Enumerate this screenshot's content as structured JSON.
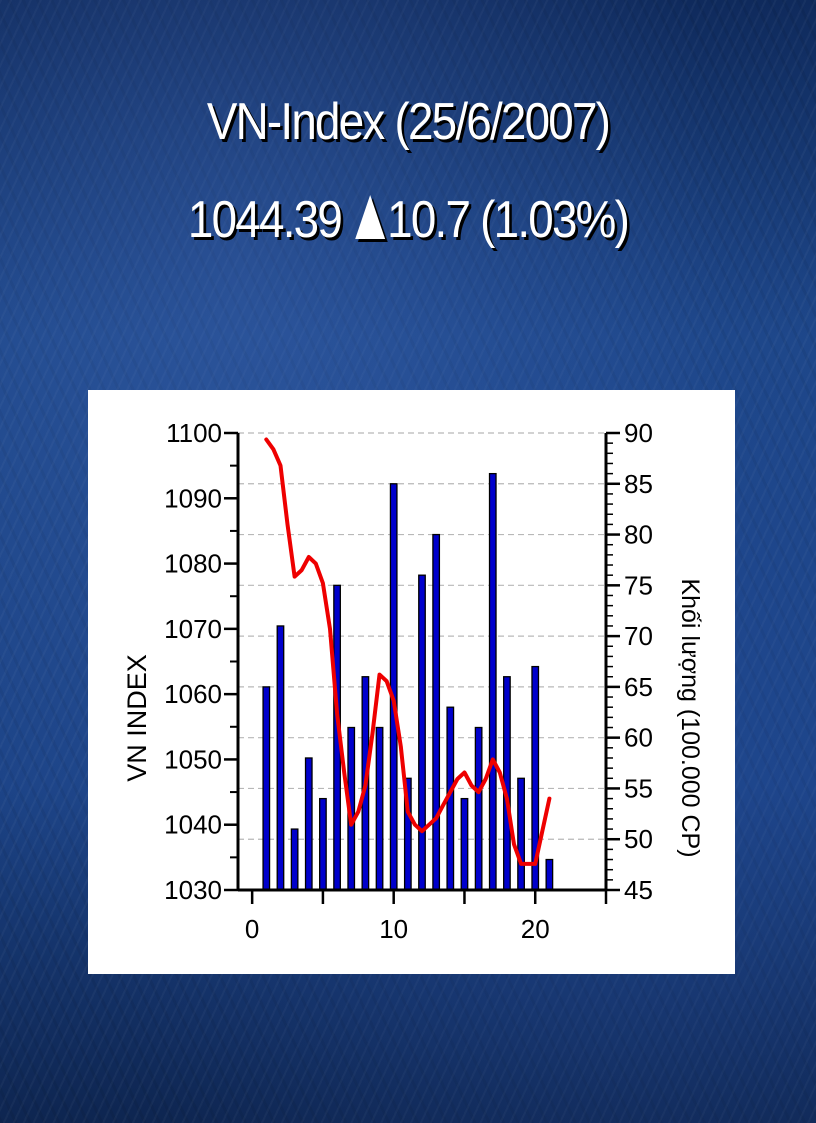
{
  "title": {
    "line1": "VN-Index (25/6/2007)",
    "line2_value": "1044.39",
    "line2_change_icon": "up-triangle-icon",
    "line2_change": "10.7 (1.03%)"
  },
  "chart_data": {
    "type": "bar+line",
    "title": "",
    "xlabel": "",
    "ylabel": "VN INDEX",
    "y2label": "Khối lượng (100.000 CP)",
    "xlim": [
      -1,
      25
    ],
    "ylim": [
      1030,
      1100
    ],
    "y2lim": [
      45,
      90
    ],
    "x_ticks": [
      0,
      10,
      20
    ],
    "y_ticks": [
      1030,
      1040,
      1050,
      1060,
      1070,
      1080,
      1090,
      1100
    ],
    "y2_ticks": [
      45,
      50,
      55,
      60,
      65,
      70,
      75,
      80,
      85,
      90
    ],
    "grid": "horizontal-dashed",
    "bar_color": "#0000cc",
    "line_color": "#ee0000",
    "bars": {
      "axis": "y2",
      "x": [
        1,
        2,
        3,
        4,
        5,
        6,
        7,
        8,
        9,
        10,
        11,
        12,
        13,
        14,
        15,
        16,
        17,
        18,
        19,
        20,
        21
      ],
      "values": [
        65,
        71,
        51,
        58,
        54,
        75,
        61,
        66,
        61,
        85,
        56,
        76,
        80,
        63,
        54,
        61,
        86,
        66,
        56,
        67,
        48
      ]
    },
    "line": {
      "axis": "y",
      "x": [
        1,
        1.5,
        2,
        2.5,
        3,
        3.5,
        4,
        4.5,
        5,
        5.5,
        6,
        6.5,
        7,
        7.5,
        8,
        8.5,
        9,
        9.5,
        10,
        10.5,
        11,
        11.5,
        12,
        12.5,
        13,
        13.5,
        14,
        14.5,
        15,
        15.5,
        16,
        16.5,
        17,
        17.5,
        18,
        18.5,
        19,
        19.5,
        20,
        20.5,
        21
      ],
      "values": [
        1099,
        1097.5,
        1095,
        1086,
        1078,
        1079,
        1081,
        1080,
        1077,
        1070,
        1057,
        1048,
        1040,
        1042,
        1046,
        1054,
        1063,
        1062,
        1059,
        1052,
        1042,
        1040,
        1039,
        1040,
        1041,
        1043,
        1045,
        1047,
        1048,
        1046,
        1045,
        1047,
        1050,
        1048,
        1044,
        1037,
        1034,
        1034,
        1034,
        1039,
        1044
      ]
    }
  }
}
